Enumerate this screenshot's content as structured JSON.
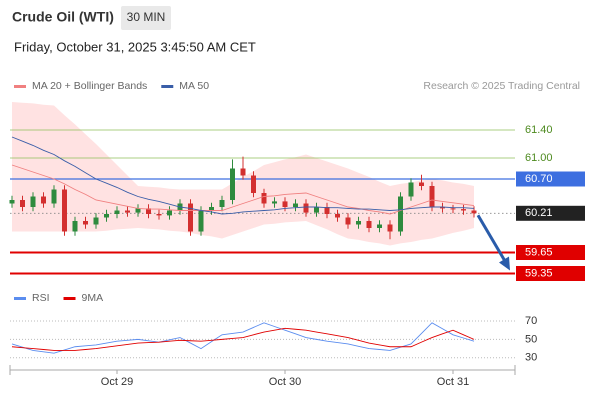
{
  "header": {
    "title": "Crude Oil (WTI)",
    "interval": "30 MIN",
    "timestamp": "Friday, October 31, 2025 3:45:50 AM CET"
  },
  "chart_data": [
    {
      "type": "candlestick",
      "credit": "Research © 2025 Trading Central",
      "up_color": "#2e8b3e",
      "down_color": "#d32f2f",
      "band_color": "#ffd6d6",
      "categories": [
        null,
        null,
        null,
        null,
        null,
        null,
        null,
        null,
        null,
        null,
        "Oct 29",
        null,
        null,
        null,
        null,
        null,
        null,
        null,
        null,
        null,
        null,
        null,
        null,
        null,
        null,
        null,
        "Oct 30",
        null,
        null,
        null,
        null,
        null,
        null,
        null,
        null,
        null,
        null,
        null,
        null,
        null,
        null,
        null,
        "Oct 31",
        null,
        null
      ],
      "open": [
        60.35,
        60.4,
        60.3,
        60.45,
        60.35,
        60.55,
        59.95,
        60.1,
        60.05,
        60.15,
        60.2,
        60.25,
        60.22,
        60.28,
        60.2,
        60.18,
        60.25,
        60.35,
        59.95,
        60.25,
        60.3,
        60.4,
        60.85,
        60.75,
        60.5,
        60.35,
        60.38,
        60.3,
        60.35,
        60.22,
        60.3,
        60.2,
        60.15,
        60.05,
        60.1,
        60.0,
        60.05,
        59.95,
        60.45,
        60.65,
        60.6,
        60.3,
        60.28,
        60.27,
        60.25
      ],
      "high": [
        60.46,
        60.46,
        60.51,
        60.51,
        60.61,
        60.61,
        60.16,
        60.16,
        60.21,
        60.26,
        60.31,
        60.31,
        60.34,
        60.34,
        60.26,
        60.31,
        60.41,
        60.41,
        60.31,
        60.36,
        60.46,
        60.98,
        61.02,
        60.81,
        60.56,
        60.44,
        60.44,
        60.41,
        60.41,
        60.36,
        60.36,
        60.26,
        60.21,
        60.16,
        60.16,
        60.11,
        60.11,
        60.51,
        60.71,
        60.76,
        60.66,
        60.36,
        60.33,
        60.33,
        60.31
      ],
      "low": [
        60.29,
        60.24,
        60.24,
        60.29,
        60.29,
        59.89,
        59.89,
        59.99,
        59.99,
        60.09,
        60.14,
        60.16,
        60.16,
        60.14,
        60.12,
        60.12,
        60.19,
        59.89,
        59.89,
        60.19,
        60.24,
        60.34,
        60.69,
        60.44,
        60.29,
        60.29,
        60.24,
        60.24,
        60.16,
        60.16,
        60.14,
        60.09,
        59.99,
        59.99,
        59.94,
        59.94,
        59.84,
        59.89,
        60.39,
        60.54,
        60.24,
        60.22,
        60.21,
        60.19,
        60.15
      ],
      "close": [
        60.4,
        60.3,
        60.45,
        60.35,
        60.55,
        59.95,
        60.1,
        60.05,
        60.15,
        60.2,
        60.25,
        60.22,
        60.28,
        60.2,
        60.18,
        60.25,
        60.35,
        59.95,
        60.25,
        60.3,
        60.4,
        60.85,
        60.75,
        60.5,
        60.35,
        60.38,
        60.3,
        60.35,
        60.22,
        60.3,
        60.2,
        60.15,
        60.05,
        60.1,
        60.0,
        60.05,
        59.95,
        60.45,
        60.65,
        60.6,
        60.3,
        60.28,
        60.27,
        60.25,
        60.21
      ],
      "series": [
        {
          "name": "MA 20 + Bollinger Bands",
          "color": "#f08080",
          "values": [
            60.9,
            60.85,
            60.8,
            60.75,
            60.7,
            60.63,
            60.55,
            60.48,
            60.4,
            60.37,
            60.34,
            60.31,
            60.28,
            60.27,
            60.27,
            60.26,
            60.25,
            60.25,
            60.25,
            60.25,
            60.25,
            60.3,
            60.35,
            60.4,
            60.45,
            60.46,
            60.48,
            60.49,
            60.5,
            60.45,
            60.4,
            60.35,
            60.3,
            60.28,
            60.25,
            60.23,
            60.2,
            60.25,
            60.3,
            60.35,
            60.4,
            60.38,
            60.36,
            60.34,
            60.32
          ],
          "bands": {
            "upper": [
              61.8,
              61.79,
              61.78,
              61.76,
              61.75,
              61.61,
              61.48,
              61.34,
              61.2,
              61.05,
              60.9,
              60.75,
              60.6,
              60.59,
              60.58,
              60.56,
              60.55,
              60.55,
              60.55,
              60.55,
              60.55,
              60.64,
              60.73,
              60.81,
              60.9,
              60.94,
              60.98,
              61.01,
              61.05,
              61.0,
              60.95,
              60.9,
              60.85,
              60.79,
              60.73,
              60.66,
              60.6,
              60.63,
              60.65,
              60.68,
              60.7,
              60.68,
              60.65,
              60.63,
              60.6
            ],
            "lower": [
              59.95,
              59.95,
              59.95,
              59.95,
              59.95,
              59.95,
              59.95,
              59.95,
              59.95,
              59.96,
              59.98,
              59.99,
              60.0,
              59.99,
              59.98,
              59.96,
              59.95,
              59.93,
              59.9,
              59.88,
              59.85,
              59.9,
              59.95,
              60.0,
              60.05,
              60.06,
              60.08,
              60.09,
              60.1,
              60.04,
              59.98,
              59.91,
              59.85,
              59.83,
              59.8,
              59.78,
              59.75,
              59.78,
              59.8,
              59.83,
              59.85,
              59.89,
              59.93,
              59.96,
              60.0
            ]
          }
        },
        {
          "name": "MA 50",
          "color": "#3a5ea8",
          "values": [
            61.3,
            61.24,
            61.18,
            61.11,
            61.05,
            60.96,
            60.88,
            60.79,
            60.7,
            60.64,
            60.58,
            60.51,
            60.45,
            60.41,
            60.38,
            60.34,
            60.3,
            60.28,
            60.25,
            60.23,
            60.2,
            60.21,
            60.23,
            60.24,
            60.25,
            60.26,
            60.28,
            60.29,
            60.3,
            60.3,
            60.29,
            60.29,
            60.28,
            60.27,
            60.27,
            60.26,
            60.25,
            60.26,
            60.28,
            60.29,
            60.3,
            60.3,
            60.29,
            60.29,
            60.28
          ]
        }
      ],
      "levels": [
        {
          "value": 61.4,
          "label": "61.40",
          "color": "#8fbf5a"
        },
        {
          "value": 61.0,
          "label": "61.00",
          "color": "#8fbf5a"
        },
        {
          "value": 60.7,
          "label": "60.70",
          "color": "#3d6fe0"
        },
        {
          "value": 60.21,
          "color": "#222222"
        },
        {
          "value": 59.65,
          "color": "#e00000"
        },
        {
          "value": 59.35,
          "color": "#e00000"
        }
      ],
      "ylim": [
        59.2,
        61.9
      ]
    },
    {
      "type": "line",
      "series": [
        {
          "name": "RSI",
          "color": "#5b8def",
          "values": [
            45,
            41.5,
            38,
            36.5,
            35,
            38.5,
            42,
            43,
            44,
            46,
            48,
            49,
            50,
            48.5,
            47,
            49.5,
            52,
            46,
            40,
            47.5,
            55,
            56.5,
            58,
            63,
            68,
            64,
            60,
            56,
            52,
            50,
            48,
            46.5,
            45,
            42.5,
            40,
            39,
            38,
            41.5,
            45,
            56.5,
            68,
            61.5,
            55,
            51.5,
            48
          ]
        },
        {
          "name": "9MA",
          "color": "#e00000",
          "values": [
            42,
            41,
            40,
            39,
            38,
            38,
            38,
            39,
            40,
            41.5,
            43,
            44.5,
            46,
            46.5,
            47,
            48,
            49,
            48.5,
            48,
            49,
            50,
            51,
            52,
            55,
            58,
            60,
            62,
            61,
            60,
            58,
            56,
            54,
            52,
            49,
            46,
            44,
            42,
            42,
            42,
            47,
            52,
            56,
            60,
            55,
            50
          ]
        }
      ],
      "ylim": [
        20,
        78
      ],
      "yticks": [
        70,
        50,
        30
      ],
      "grid": true
    }
  ]
}
